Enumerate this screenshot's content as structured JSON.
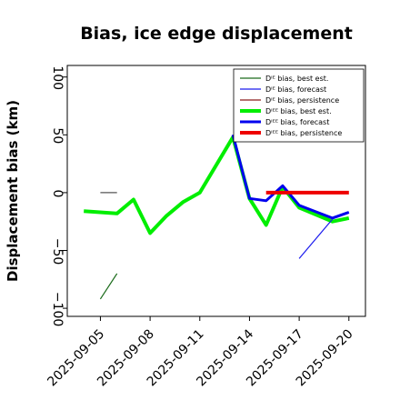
{
  "chart_data": {
    "type": "line",
    "title": "Bias, ice edge displacement",
    "xlabel": "",
    "ylabel": "Displacement bias (km)",
    "xlim": [
      "2025-09-03",
      "2025-09-21"
    ],
    "ylim": [
      -107,
      110
    ],
    "y_ticks": [
      100,
      50,
      0,
      -50,
      -100
    ],
    "y_tick_labels": [
      "100",
      "50",
      "0",
      "−50",
      "−100"
    ],
    "x_ticks": [
      "2025-09-05",
      "2025-09-08",
      "2025-09-11",
      "2025-09-14",
      "2025-09-17",
      "2025-09-20"
    ],
    "x_tick_colors": [
      "#000000",
      "#000000",
      "#228b22",
      "#000000",
      "#000000",
      "#000000"
    ],
    "legend_position": "top-right",
    "grid": false,
    "series": [
      {
        "name": "Dᴵᴱ bias, best est.",
        "color": "#1a6b1a",
        "width": 1.2,
        "points": [
          [
            "2025-09-05",
            -92
          ],
          [
            "2025-09-06",
            -70
          ]
        ]
      },
      {
        "name": "Dᴵᴱ bias, forecast",
        "color": "#1a1aee",
        "width": 1.2,
        "points": [
          [
            "2025-09-17",
            -57
          ],
          [
            "2025-09-19",
            -23
          ]
        ]
      },
      {
        "name": "Dᴵᴱ bias, persistence",
        "color": "#8b1a1a",
        "width": 1.2,
        "points": [
          [
            "2025-09-05",
            0
          ],
          [
            "2025-09-06",
            0
          ]
        ],
        "stroke_override": "#555555"
      },
      {
        "name": "Dᴵᴱᴱ bias, best est.",
        "color": "#00ee00",
        "width": 4,
        "points": [
          [
            "2025-09-04",
            -16
          ],
          [
            "2025-09-06",
            -18
          ],
          [
            "2025-09-07",
            -6
          ],
          [
            "2025-09-08",
            -35
          ],
          [
            "2025-09-09",
            -20
          ],
          [
            "2025-09-10",
            -8
          ],
          [
            "2025-09-11",
            0
          ],
          [
            "2025-09-13",
            48
          ],
          [
            "2025-09-14",
            -5
          ],
          [
            "2025-09-15",
            -28
          ],
          [
            "2025-09-16",
            5
          ],
          [
            "2025-09-17",
            -13
          ],
          [
            "2025-09-19",
            -25
          ],
          [
            "2025-09-20",
            -22
          ]
        ]
      },
      {
        "name": "Dᴵᴱᴱ bias, forecast",
        "color": "#0000ee",
        "width": 3,
        "points": [
          [
            "2025-09-13",
            50
          ],
          [
            "2025-09-14",
            -5
          ],
          [
            "2025-09-15",
            -7
          ],
          [
            "2025-09-16",
            6
          ],
          [
            "2025-09-17",
            -11
          ],
          [
            "2025-09-19",
            -22
          ],
          [
            "2025-09-20",
            -17
          ]
        ]
      },
      {
        "name": "Dᴵᴱᴱ bias, persistence",
        "color": "#ee0000",
        "width": 4,
        "points": [
          [
            "2025-09-15",
            0
          ],
          [
            "2025-09-20",
            0
          ]
        ]
      }
    ]
  }
}
